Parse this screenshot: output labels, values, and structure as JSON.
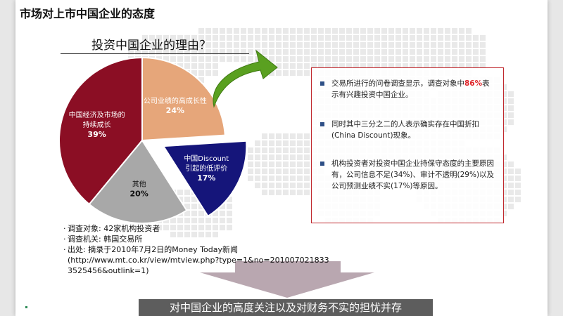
{
  "slide": {
    "title": "市场对上市中国企业的态度",
    "subtitle": "投资中国企业的理由？"
  },
  "chart_data": {
    "type": "pie",
    "title": "投资中国企业的理由？",
    "slices": [
      {
        "label": "中国经济及市场的持续成长",
        "label_lines": [
          "中国经济及市场的",
          "持续成长"
        ],
        "value": 39,
        "value_label": "39%",
        "color": "#8b0e24",
        "text_color": "#ffffff"
      },
      {
        "label": "公司业绩的高成长性",
        "label_lines": [
          "公司业绩的高成长性"
        ],
        "value": 24,
        "value_label": "24%",
        "color": "#e6a67a",
        "text_color": "#ffffff"
      },
      {
        "label": "中国Discount引起的低评价",
        "label_lines": [
          "中国Discount",
          "引起的低评价"
        ],
        "value": 17,
        "value_label": "17%",
        "color": "#15157a",
        "text_color": "#ffffff",
        "exploded": true
      },
      {
        "label": "其他",
        "label_lines": [
          "其他"
        ],
        "value": 20,
        "value_label": "20%",
        "color": "#a8a8a8",
        "text_color": "#111111"
      }
    ]
  },
  "findings": {
    "items": [
      {
        "before": "交易所进行的问卷调查显示，调查对象中",
        "highlight": "86%",
        "after": "表示有兴趣投资中国企业。"
      },
      {
        "before": "同时其中三分之二的人表示确实存在中国折扣(China Discount)现象。",
        "highlight": "",
        "after": ""
      },
      {
        "before": "机构投资者对投资中国企业持保守态度的主要原因有，公司信息不足(34%)、审计不透明(29%)以及公司预测业绩不实(17%)等原因。",
        "highlight": "",
        "after": ""
      }
    ]
  },
  "notes": {
    "survey_target": "调查对象: 42家机构投资者",
    "survey_org": "调查机关: 韩国交易所",
    "source": "出处: 摘录于2010年7月2日的Money Today新闻",
    "url_line1": "(http://www.mt.co.kr/view/mtview.php?type=1&no=201007021833",
    "url_line2": "3525456&outlink=1)"
  },
  "conclusion": "对中国企业的高度关注以及对财务不实的担忧并存",
  "colors": {
    "arrow_green": "#5aa020",
    "down_arrow": "#b9a7b0",
    "box_border": "#c0282d",
    "bullet": "#2e4f86"
  }
}
